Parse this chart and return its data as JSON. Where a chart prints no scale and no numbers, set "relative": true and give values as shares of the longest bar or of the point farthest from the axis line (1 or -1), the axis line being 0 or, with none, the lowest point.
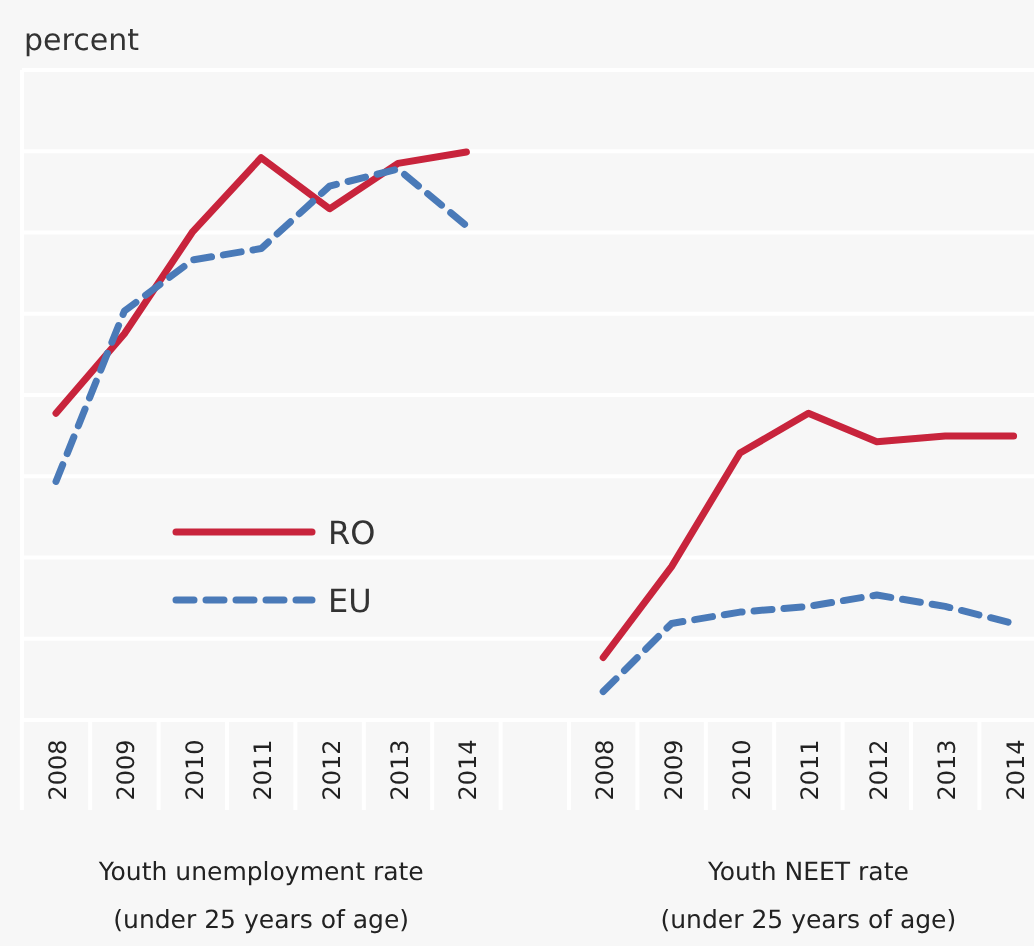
{
  "chart_data": {
    "type": "line",
    "relative": true,
    "ylabel": "percent",
    "categories": [
      "2008",
      "2009",
      "2010",
      "2011",
      "2012",
      "2013",
      "2014",
      null,
      "2008",
      "2009",
      "2010",
      "2011",
      "2012",
      "2013",
      "2014"
    ],
    "series": [
      {
        "name": "RO",
        "color": "#c8243c",
        "line_style": "solid",
        "values": [
          0.54,
          0.68,
          0.86,
          0.99,
          0.9,
          0.98,
          1,
          null,
          0.11,
          0.27,
          0.47,
          0.54,
          0.49,
          0.5,
          0.5
        ]
      },
      {
        "name": "EU",
        "color": "#4a7ab8",
        "line_style": "dashed",
        "values": [
          0.42,
          0.72,
          0.81,
          0.83,
          0.94,
          0.97,
          0.87,
          null,
          0.05,
          0.17,
          0.19,
          0.2,
          0.22,
          0.2,
          0.17
        ]
      }
    ],
    "annotations": [
      "Youth unemployment rate (under 25 years of age)",
      "Youth NEET rate (under 25 years of age)"
    ],
    "grid": true,
    "legend": "left",
    "marker": "none"
  }
}
